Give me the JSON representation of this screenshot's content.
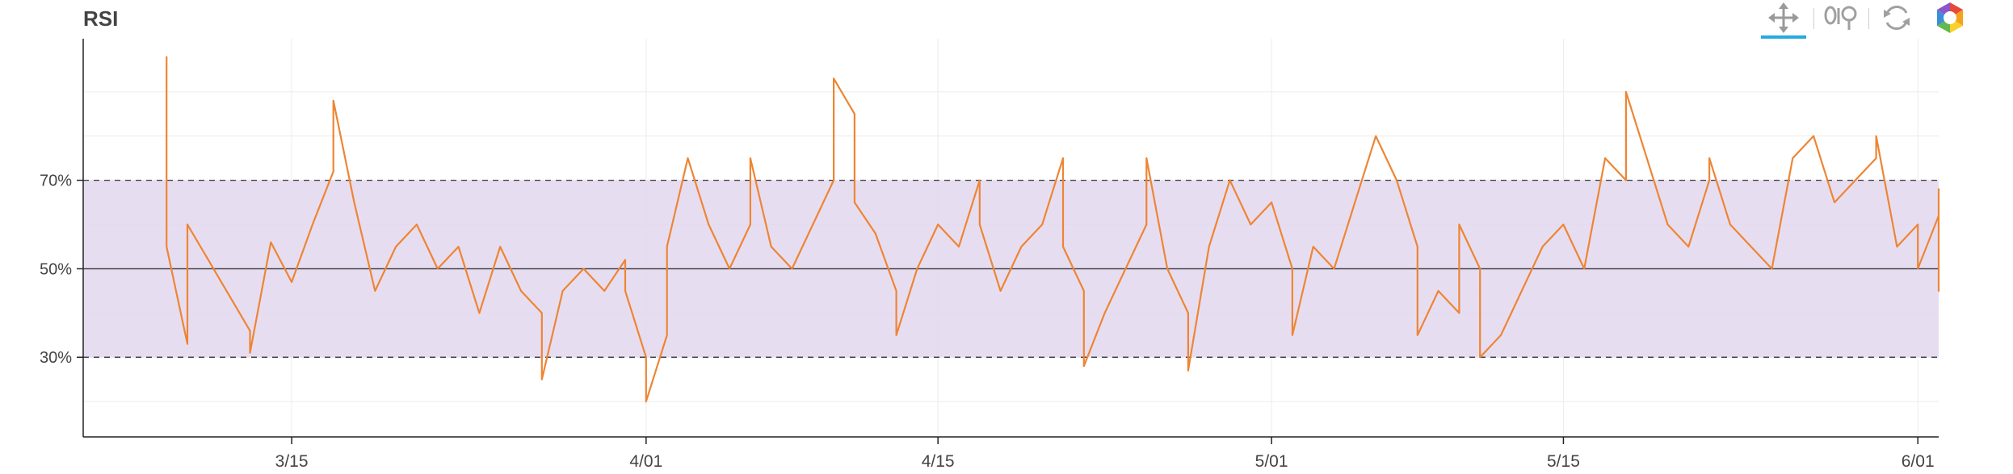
{
  "panel": {
    "title": "RSI"
  },
  "toolbar": {
    "tools": [
      {
        "name": "pan-tool",
        "icon": "pan-arrows-icon",
        "active": true
      },
      {
        "name": "wheel-zoom-tool",
        "icon": "wheel-zoom-icon",
        "active": false
      },
      {
        "name": "reset-tool",
        "icon": "reset-icon",
        "active": false
      },
      {
        "name": "bokeh-logo",
        "icon": "bokeh-logo-icon",
        "active": false
      }
    ]
  },
  "chart_data": {
    "type": "line",
    "title": "RSI",
    "xlabel": "",
    "ylabel": "",
    "y_unit": "%",
    "ylim": [
      12,
      102
    ],
    "xlim": [
      "2024-03-05",
      "2024-06-02"
    ],
    "x_ticks": [
      {
        "date": "2024-03-15",
        "label": "3/15"
      },
      {
        "date": "2024-04-01",
        "label": "4/01"
      },
      {
        "date": "2024-04-15",
        "label": "4/15"
      },
      {
        "date": "2024-05-01",
        "label": "5/01"
      },
      {
        "date": "2024-05-15",
        "label": "5/15"
      },
      {
        "date": "2024-06-01",
        "label": "6/01"
      }
    ],
    "y_ticks": [
      {
        "value": 30,
        "label": "30%"
      },
      {
        "value": 50,
        "label": "50%"
      },
      {
        "value": 70,
        "label": "70%"
      }
    ],
    "band": {
      "low": 30,
      "high": 70,
      "color": "#e4d9ef"
    },
    "reference_lines": [
      {
        "value": 70,
        "style": "dashed"
      },
      {
        "value": 50,
        "style": "solid"
      },
      {
        "value": 30,
        "style": "dashed"
      }
    ],
    "grid": true,
    "series": [
      {
        "color": "#ee8533",
        "points": [
          [
            "2024-03-09",
            98
          ],
          [
            "2024-03-09",
            55
          ],
          [
            "2024-03-10",
            33
          ],
          [
            "2024-03-10",
            60
          ],
          [
            "2024-03-11",
            52
          ],
          [
            "2024-03-12",
            44
          ],
          [
            "2024-03-13",
            36
          ],
          [
            "2024-03-13",
            31
          ],
          [
            "2024-03-14",
            56
          ],
          [
            "2024-03-15",
            47
          ],
          [
            "2024-03-16",
            60
          ],
          [
            "2024-03-17",
            72
          ],
          [
            "2024-03-17",
            88
          ],
          [
            "2024-03-18",
            65
          ],
          [
            "2024-03-19",
            45
          ],
          [
            "2024-03-20",
            55
          ],
          [
            "2024-03-21",
            60
          ],
          [
            "2024-03-22",
            50
          ],
          [
            "2024-03-23",
            55
          ],
          [
            "2024-03-24",
            40
          ],
          [
            "2024-03-25",
            55
          ],
          [
            "2024-03-26",
            45
          ],
          [
            "2024-03-27",
            40
          ],
          [
            "2024-03-27",
            25
          ],
          [
            "2024-03-28",
            45
          ],
          [
            "2024-03-29",
            50
          ],
          [
            "2024-03-30",
            45
          ],
          [
            "2024-03-31",
            52
          ],
          [
            "2024-03-31",
            45
          ],
          [
            "2024-04-01",
            30
          ],
          [
            "2024-04-01",
            20
          ],
          [
            "2024-04-02",
            35
          ],
          [
            "2024-04-02",
            55
          ],
          [
            "2024-04-03",
            75
          ],
          [
            "2024-04-04",
            60
          ],
          [
            "2024-04-05",
            50
          ],
          [
            "2024-04-06",
            60
          ],
          [
            "2024-04-06",
            75
          ],
          [
            "2024-04-07",
            55
          ],
          [
            "2024-04-08",
            50
          ],
          [
            "2024-04-09",
            60
          ],
          [
            "2024-04-10",
            70
          ],
          [
            "2024-04-10",
            93
          ],
          [
            "2024-04-11",
            85
          ],
          [
            "2024-04-11",
            65
          ],
          [
            "2024-04-12",
            58
          ],
          [
            "2024-04-13",
            45
          ],
          [
            "2024-04-13",
            35
          ],
          [
            "2024-04-14",
            50
          ],
          [
            "2024-04-15",
            60
          ],
          [
            "2024-04-16",
            55
          ],
          [
            "2024-04-17",
            70
          ],
          [
            "2024-04-17",
            60
          ],
          [
            "2024-04-18",
            45
          ],
          [
            "2024-04-19",
            55
          ],
          [
            "2024-04-20",
            60
          ],
          [
            "2024-04-21",
            75
          ],
          [
            "2024-04-21",
            55
          ],
          [
            "2024-04-22",
            45
          ],
          [
            "2024-04-22",
            28
          ],
          [
            "2024-04-23",
            40
          ],
          [
            "2024-04-24",
            50
          ],
          [
            "2024-04-25",
            60
          ],
          [
            "2024-04-25",
            75
          ],
          [
            "2024-04-26",
            50
          ],
          [
            "2024-04-27",
            40
          ],
          [
            "2024-04-27",
            27
          ],
          [
            "2024-04-28",
            55
          ],
          [
            "2024-04-29",
            70
          ],
          [
            "2024-04-30",
            60
          ],
          [
            "2024-05-01",
            65
          ],
          [
            "2024-05-02",
            50
          ],
          [
            "2024-05-02",
            35
          ],
          [
            "2024-05-03",
            55
          ],
          [
            "2024-05-04",
            50
          ],
          [
            "2024-05-05",
            65
          ],
          [
            "2024-05-06",
            80
          ],
          [
            "2024-05-07",
            70
          ],
          [
            "2024-05-08",
            55
          ],
          [
            "2024-05-08",
            35
          ],
          [
            "2024-05-09",
            45
          ],
          [
            "2024-05-10",
            40
          ],
          [
            "2024-05-10",
            60
          ],
          [
            "2024-05-11",
            50
          ],
          [
            "2024-05-11",
            30
          ],
          [
            "2024-05-12",
            35
          ],
          [
            "2024-05-13",
            45
          ],
          [
            "2024-05-14",
            55
          ],
          [
            "2024-05-15",
            60
          ],
          [
            "2024-05-16",
            50
          ],
          [
            "2024-05-17",
            75
          ],
          [
            "2024-05-18",
            70
          ],
          [
            "2024-05-18",
            90
          ],
          [
            "2024-05-19",
            75
          ],
          [
            "2024-05-20",
            60
          ],
          [
            "2024-05-21",
            55
          ],
          [
            "2024-05-22",
            70
          ],
          [
            "2024-05-22",
            75
          ],
          [
            "2024-05-23",
            60
          ],
          [
            "2024-05-24",
            55
          ],
          [
            "2024-05-25",
            50
          ],
          [
            "2024-05-26",
            75
          ],
          [
            "2024-05-27",
            80
          ],
          [
            "2024-05-28",
            65
          ],
          [
            "2024-05-29",
            70
          ],
          [
            "2024-05-30",
            75
          ],
          [
            "2024-05-30",
            80
          ],
          [
            "2024-05-31",
            55
          ],
          [
            "2024-06-01",
            60
          ],
          [
            "2024-06-01",
            50
          ],
          [
            "2024-06-02",
            62
          ],
          [
            "2024-06-02",
            68
          ],
          [
            "2024-06-02",
            50
          ],
          [
            "2024-06-02",
            45
          ],
          [
            "2024-06-02",
            55
          ]
        ]
      }
    ]
  }
}
